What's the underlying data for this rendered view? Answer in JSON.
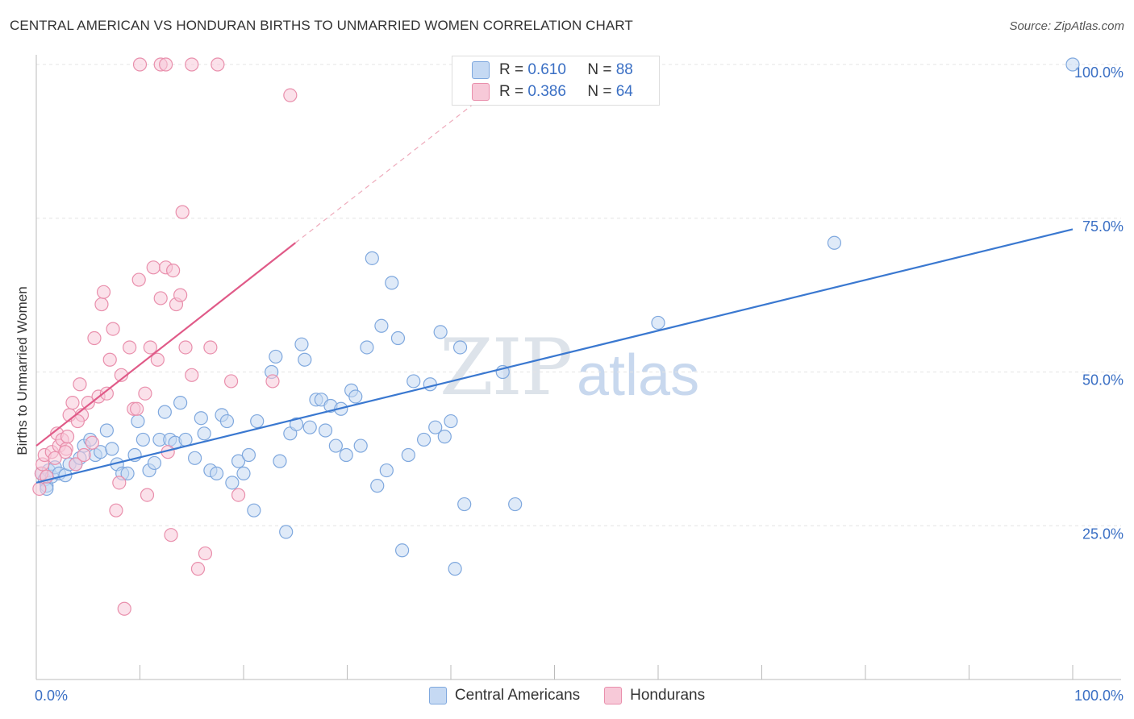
{
  "title": "CENTRAL AMERICAN VS HONDURAN BIRTHS TO UNMARRIED WOMEN CORRELATION CHART",
  "source": "Source: ZipAtlas.com",
  "watermark": {
    "zip": "ZIP",
    "atlas": "atlas"
  },
  "legend_stats": [
    {
      "r_label": "R = ",
      "r_value": "0.610",
      "n_label": "N = ",
      "n_value": "88",
      "color": "#c5d9f3"
    },
    {
      "r_label": "R = ",
      "r_value": "0.386",
      "n_label": "N = ",
      "n_value": "64",
      "color": "#f7c9d8"
    }
  ],
  "chart_data": {
    "type": "scatter",
    "title": "CENTRAL AMERICAN VS HONDURAN BIRTHS TO UNMARRIED WOMEN CORRELATION CHART",
    "xlabel": "",
    "ylabel": "Births to Unmarried Women",
    "xlim": [
      0,
      100
    ],
    "ylim": [
      0,
      100
    ],
    "x_tick_labels": [
      "0.0%",
      "100.0%"
    ],
    "y_tick_labels": [
      "25.0%",
      "50.0%",
      "75.0%",
      "100.0%"
    ],
    "y_ticks": [
      25,
      50,
      75,
      100
    ],
    "grid": true,
    "legend_position": "bottom",
    "series": [
      {
        "name": "Central Americans",
        "color": "#7fa8de",
        "fill": "#c5d9f3",
        "trendline": {
          "x": [
            0,
            100
          ],
          "y": [
            32.0,
            73.2
          ],
          "color": "#3a78d0"
        },
        "points": [
          [
            0.5,
            33.5
          ],
          [
            0.8,
            32.5
          ],
          [
            1.0,
            31.5
          ],
          [
            1.2,
            34.0
          ],
          [
            1.5,
            33.0
          ],
          [
            1.8,
            34.5
          ],
          [
            2.2,
            33.5
          ],
          [
            2.8,
            33.2
          ],
          [
            3.2,
            35.0
          ],
          [
            3.8,
            35.0
          ],
          [
            4.2,
            36.0
          ],
          [
            4.6,
            38.0
          ],
          [
            5.2,
            39.0
          ],
          [
            5.7,
            36.5
          ],
          [
            6.2,
            37.0
          ],
          [
            6.8,
            40.5
          ],
          [
            7.3,
            37.5
          ],
          [
            7.8,
            35.0
          ],
          [
            8.3,
            33.5
          ],
          [
            8.8,
            33.5
          ],
          [
            9.5,
            36.5
          ],
          [
            9.8,
            42.0
          ],
          [
            10.3,
            39.0
          ],
          [
            10.9,
            34.0
          ],
          [
            11.4,
            35.2
          ],
          [
            11.9,
            39.0
          ],
          [
            12.4,
            43.5
          ],
          [
            12.9,
            39.0
          ],
          [
            13.4,
            38.5
          ],
          [
            13.9,
            45.0
          ],
          [
            14.4,
            39.0
          ],
          [
            15.9,
            42.5
          ],
          [
            15.3,
            36.0
          ],
          [
            16.2,
            40.0
          ],
          [
            16.8,
            34.0
          ],
          [
            17.4,
            33.5
          ],
          [
            17.9,
            43.0
          ],
          [
            18.4,
            42.0
          ],
          [
            18.9,
            32.0
          ],
          [
            19.5,
            35.5
          ],
          [
            20.0,
            33.5
          ],
          [
            20.5,
            36.5
          ],
          [
            21.0,
            27.5
          ],
          [
            21.3,
            42.0
          ],
          [
            22.7,
            50.0
          ],
          [
            23.1,
            52.5
          ],
          [
            23.5,
            35.5
          ],
          [
            24.1,
            24.0
          ],
          [
            24.5,
            40.0
          ],
          [
            25.1,
            41.5
          ],
          [
            25.6,
            54.5
          ],
          [
            25.9,
            52.0
          ],
          [
            26.4,
            41.0
          ],
          [
            27.0,
            45.5
          ],
          [
            27.5,
            45.5
          ],
          [
            27.9,
            40.5
          ],
          [
            28.4,
            44.5
          ],
          [
            28.9,
            38.0
          ],
          [
            29.4,
            44.0
          ],
          [
            29.9,
            36.5
          ],
          [
            30.4,
            47.0
          ],
          [
            30.8,
            46.0
          ],
          [
            31.3,
            38.0
          ],
          [
            31.9,
            54.0
          ],
          [
            32.4,
            68.5
          ],
          [
            32.9,
            31.5
          ],
          [
            33.3,
            57.5
          ],
          [
            33.8,
            34.0
          ],
          [
            34.3,
            64.5
          ],
          [
            34.9,
            55.5
          ],
          [
            35.3,
            21.0
          ],
          [
            35.9,
            36.5
          ],
          [
            36.4,
            48.5
          ],
          [
            37.4,
            39.0
          ],
          [
            38.0,
            48.0
          ],
          [
            38.5,
            41.0
          ],
          [
            39.0,
            56.5
          ],
          [
            39.4,
            39.5
          ],
          [
            40.0,
            42.0
          ],
          [
            40.4,
            18.0
          ],
          [
            40.9,
            54.0
          ],
          [
            41.3,
            28.5
          ],
          [
            45.0,
            50.0
          ],
          [
            46.2,
            28.5
          ],
          [
            60.0,
            58.0
          ],
          [
            77.0,
            71.0
          ],
          [
            100.0,
            100.0
          ],
          [
            1.0,
            31.0
          ]
        ]
      },
      {
        "name": "Hondurans",
        "color": "#e98fac",
        "fill": "#f7c9d8",
        "trendline": {
          "x": [
            0,
            25
          ],
          "y": [
            38.0,
            71.0
          ],
          "dashed_extension": {
            "x": [
              25,
              42.5
            ],
            "y": [
              71.0,
              94.0
            ]
          },
          "color": "#e05a88"
        },
        "points": [
          [
            0.3,
            31.0
          ],
          [
            0.5,
            33.5
          ],
          [
            0.6,
            35.0
          ],
          [
            0.8,
            36.5
          ],
          [
            1.0,
            33.0
          ],
          [
            1.5,
            37.0
          ],
          [
            2.0,
            40.0
          ],
          [
            2.2,
            38.0
          ],
          [
            2.5,
            39.0
          ],
          [
            2.9,
            37.5
          ],
          [
            3.0,
            39.5
          ],
          [
            3.2,
            43.0
          ],
          [
            3.5,
            45.0
          ],
          [
            3.8,
            35.0
          ],
          [
            4.2,
            48.0
          ],
          [
            4.4,
            43.0
          ],
          [
            4.6,
            36.5
          ],
          [
            5.0,
            45.0
          ],
          [
            5.4,
            38.5
          ],
          [
            5.6,
            55.5
          ],
          [
            6.0,
            46.0
          ],
          [
            6.3,
            61.0
          ],
          [
            6.5,
            63.0
          ],
          [
            6.8,
            46.5
          ],
          [
            7.1,
            52.0
          ],
          [
            7.4,
            57.0
          ],
          [
            7.7,
            27.5
          ],
          [
            8.0,
            32.0
          ],
          [
            8.2,
            49.5
          ],
          [
            8.5,
            11.5
          ],
          [
            9.0,
            54.0
          ],
          [
            9.4,
            44.0
          ],
          [
            9.7,
            44.0
          ],
          [
            9.9,
            65.0
          ],
          [
            10.5,
            46.5
          ],
          [
            10.7,
            30.0
          ],
          [
            11.0,
            54.0
          ],
          [
            11.3,
            67.0
          ],
          [
            11.7,
            52.0
          ],
          [
            12.0,
            62.0
          ],
          [
            12.5,
            67.0
          ],
          [
            12.7,
            37.0
          ],
          [
            13.0,
            23.5
          ],
          [
            13.2,
            66.5
          ],
          [
            13.5,
            61.0
          ],
          [
            13.9,
            62.5
          ],
          [
            14.1,
            76.0
          ],
          [
            14.4,
            54.0
          ],
          [
            15.0,
            49.5
          ],
          [
            15.6,
            18.0
          ],
          [
            16.3,
            20.5
          ],
          [
            16.8,
            54.0
          ],
          [
            18.8,
            48.5
          ],
          [
            19.5,
            30.0
          ],
          [
            22.8,
            48.5
          ],
          [
            24.5,
            95.0
          ],
          [
            10.0,
            100.0
          ],
          [
            12.0,
            100.0
          ],
          [
            12.5,
            100.0
          ],
          [
            15.0,
            100.0
          ],
          [
            17.5,
            100.0
          ],
          [
            4.0,
            42.0
          ],
          [
            2.8,
            37.0
          ],
          [
            1.8,
            36.0
          ]
        ]
      }
    ]
  }
}
